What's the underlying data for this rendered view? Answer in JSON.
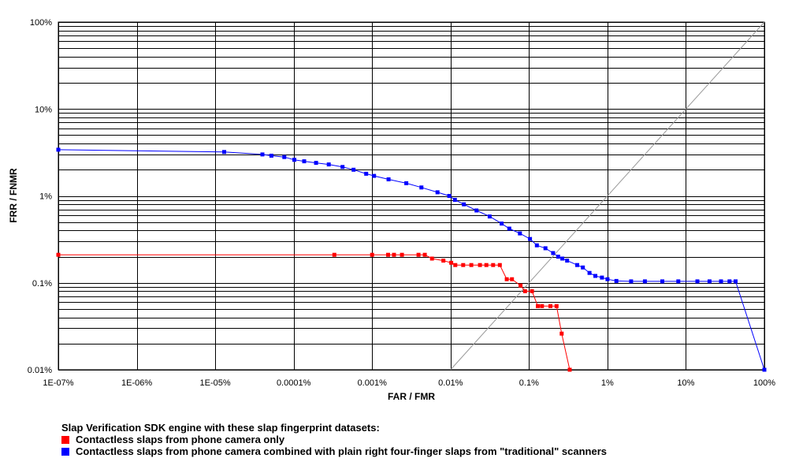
{
  "chart_data": {
    "type": "line",
    "xscale": "log",
    "yscale": "log",
    "xlabel": "FAR / FMR",
    "ylabel": "FRR / FNMR",
    "xlim": [
      1e-07,
      100
    ],
    "ylim": [
      0.01,
      100
    ],
    "x_ticks": [
      {
        "v": 1e-07,
        "label": "1E-07%"
      },
      {
        "v": 1e-06,
        "label": "1E-06%"
      },
      {
        "v": 1e-05,
        "label": "1E-05%"
      },
      {
        "v": 0.0001,
        "label": "0.0001%"
      },
      {
        "v": 0.001,
        "label": "0.001%"
      },
      {
        "v": 0.01,
        "label": "0.01%"
      },
      {
        "v": 0.1,
        "label": "0.1%"
      },
      {
        "v": 1,
        "label": "1%"
      },
      {
        "v": 10,
        "label": "10%"
      },
      {
        "v": 100,
        "label": "100%"
      }
    ],
    "y_ticks": [
      {
        "v": 0.01,
        "label": "0.01%"
      },
      {
        "v": 0.1,
        "label": "0.1%"
      },
      {
        "v": 1,
        "label": "1%"
      },
      {
        "v": 10,
        "label": "10%"
      },
      {
        "v": 100,
        "label": "100%"
      }
    ],
    "grid": true,
    "diagonal": {
      "from": [
        0.01,
        0.01
      ],
      "to": [
        100,
        100
      ],
      "color": "#999999"
    },
    "legend_title": "Slap Verification SDK engine with these slap fingerprint datasets:",
    "series": [
      {
        "name": "Contactless slaps from phone camera only",
        "color": "#ff0000",
        "points": [
          [
            1e-07,
            0.21
          ],
          [
            0.00033,
            0.21
          ],
          [
            0.001,
            0.21
          ],
          [
            0.0016,
            0.21
          ],
          [
            0.0019,
            0.21
          ],
          [
            0.0024,
            0.21
          ],
          [
            0.0039,
            0.21
          ],
          [
            0.0047,
            0.21
          ],
          [
            0.0058,
            0.19
          ],
          [
            0.0081,
            0.18
          ],
          [
            0.0102,
            0.17
          ],
          [
            0.0115,
            0.16
          ],
          [
            0.0145,
            0.16
          ],
          [
            0.0184,
            0.16
          ],
          [
            0.0237,
            0.16
          ],
          [
            0.0286,
            0.16
          ],
          [
            0.0349,
            0.16
          ],
          [
            0.0425,
            0.16
          ],
          [
            0.052,
            0.11
          ],
          [
            0.0607,
            0.11
          ],
          [
            0.078,
            0.093
          ],
          [
            0.089,
            0.08
          ],
          [
            0.109,
            0.08
          ],
          [
            0.1295,
            0.054
          ],
          [
            0.1463,
            0.054
          ],
          [
            0.1875,
            0.054
          ],
          [
            0.2244,
            0.054
          ],
          [
            0.2607,
            0.026
          ],
          [
            0.33,
            0.01
          ]
        ]
      },
      {
        "name": "Contactless slaps from phone camera combined with plain right four-finger slaps from \"traditional\" scanners",
        "color": "#0000ff",
        "points": [
          [
            1e-07,
            3.4
          ],
          [
            1.3e-05,
            3.2
          ],
          [
            4e-05,
            3.0
          ],
          [
            5.2e-05,
            2.9
          ],
          [
            7.6e-05,
            2.8
          ],
          [
            0.000102,
            2.6
          ],
          [
            0.000136,
            2.5
          ],
          [
            0.000193,
            2.4
          ],
          [
            0.00028,
            2.3
          ],
          [
            0.00042,
            2.15
          ],
          [
            0.00058,
            2.0
          ],
          [
            0.00084,
            1.8
          ],
          [
            0.00106,
            1.7
          ],
          [
            0.00162,
            1.55
          ],
          [
            0.00273,
            1.4
          ],
          [
            0.00425,
            1.25
          ],
          [
            0.00682,
            1.1
          ],
          [
            0.00963,
            1.0
          ],
          [
            0.01136,
            0.9
          ],
          [
            0.0148,
            0.8
          ],
          [
            0.0214,
            0.68
          ],
          [
            0.0315,
            0.58
          ],
          [
            0.0448,
            0.48
          ],
          [
            0.0561,
            0.42
          ],
          [
            0.0766,
            0.37
          ],
          [
            0.103,
            0.32
          ],
          [
            0.126,
            0.27
          ],
          [
            0.162,
            0.25
          ],
          [
            0.203,
            0.22
          ],
          [
            0.235,
            0.2
          ],
          [
            0.266,
            0.19
          ],
          [
            0.306,
            0.18
          ],
          [
            0.412,
            0.16
          ],
          [
            0.486,
            0.15
          ],
          [
            0.59,
            0.13
          ],
          [
            0.7,
            0.12
          ],
          [
            0.85,
            0.115
          ],
          [
            1.0,
            0.11
          ],
          [
            1.3,
            0.105
          ],
          [
            2.0,
            0.104
          ],
          [
            3.0,
            0.104
          ],
          [
            5.0,
            0.104
          ],
          [
            8.0,
            0.104
          ],
          [
            14,
            0.104
          ],
          [
            20,
            0.104
          ],
          [
            28,
            0.104
          ],
          [
            36,
            0.104
          ],
          [
            43,
            0.104
          ],
          [
            100,
            0.01
          ]
        ]
      }
    ]
  }
}
